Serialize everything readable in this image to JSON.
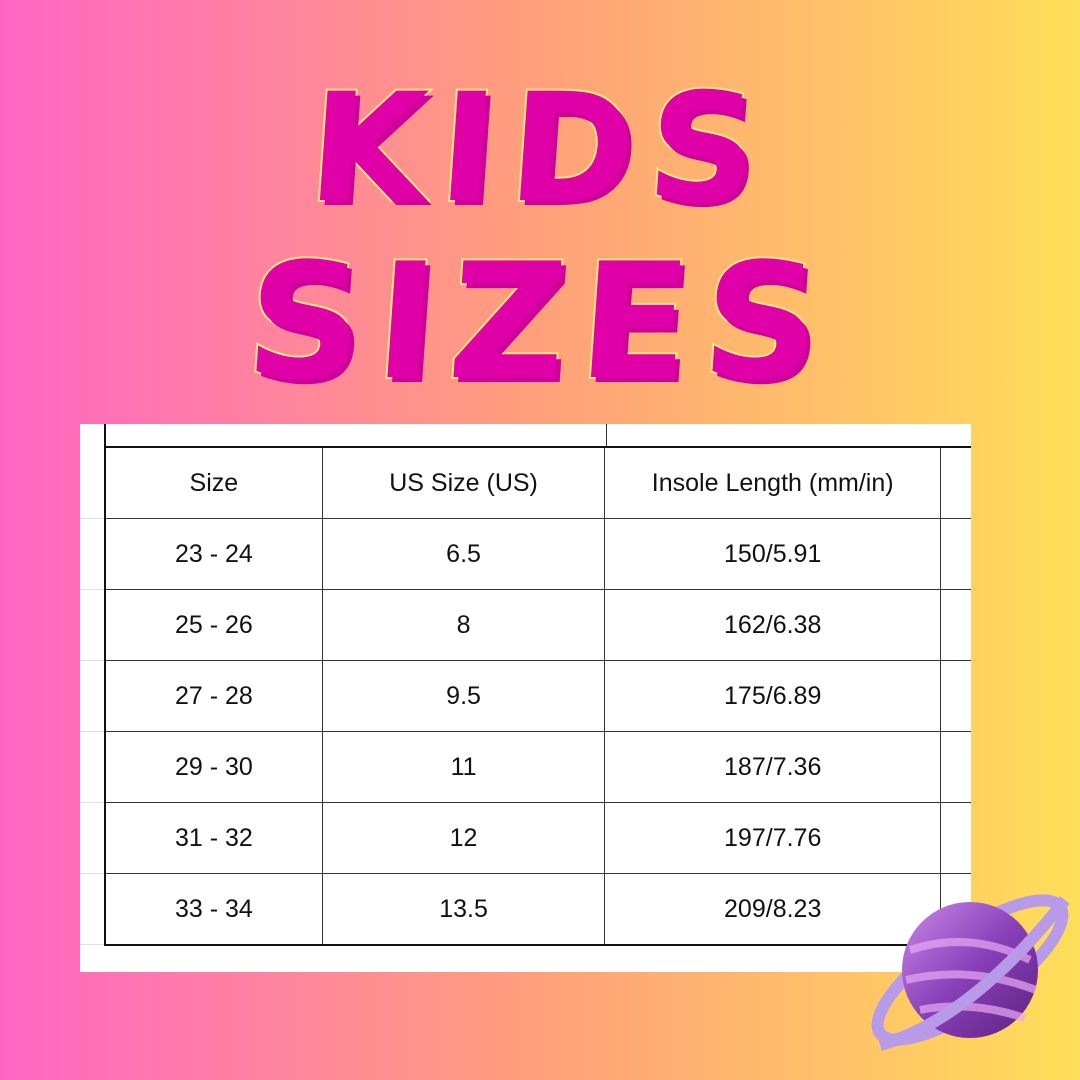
{
  "title": {
    "line1": "KIDS",
    "line2": "SIZES"
  },
  "table": {
    "headers": [
      "Size",
      "US Size (US)",
      "Insole Length (mm/in)",
      ""
    ],
    "rows": [
      [
        "23 - 24",
        "6.5",
        "150/5.91"
      ],
      [
        "25 - 26",
        "8",
        "162/6.38"
      ],
      [
        "27 - 28",
        "9.5",
        "175/6.89"
      ],
      [
        "29 - 30",
        "11",
        "187/7.36"
      ],
      [
        "31 - 32",
        "12",
        "197/7.76"
      ],
      [
        "33 - 34",
        "13.5",
        "209/8.23"
      ]
    ]
  },
  "decoration": {
    "icon": "planet-icon",
    "colors": {
      "title": "#e000a8",
      "outline": "#ffe97a",
      "planet": "#9b5fd0"
    }
  }
}
